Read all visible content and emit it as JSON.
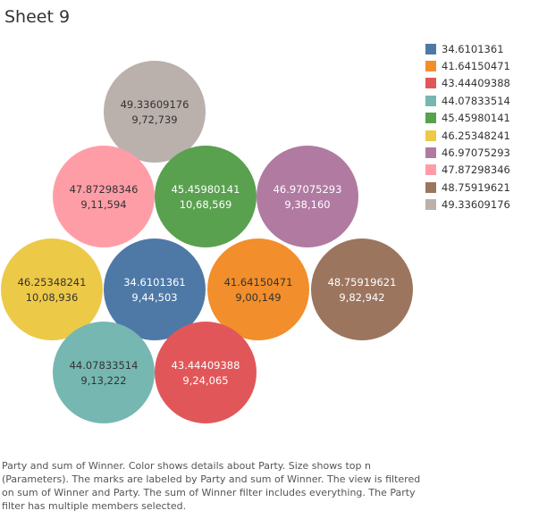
{
  "sheet_title": "Sheet 9",
  "caption": "Party and sum of Winner.  Color shows details about Party.  Size shows top n (Parameters).  The marks are labeled by Party and sum of Winner. The view is filtered on sum of Winner and Party. The sum of Winner filter includes everything. The Party filter has multiple members selected.",
  "chart_data": {
    "type": "packed-bubble",
    "title": "Sheet 9",
    "color_by": "Party",
    "size_by": "top n (Parameters)",
    "bubbles": [
      {
        "party": "49.33609176",
        "winner": "9,72,739",
        "color": "#bab0ac",
        "text_color": "#333333"
      },
      {
        "party": "47.87298346",
        "winner": "9,11,594",
        "color": "#ff9da7",
        "text_color": "#333333"
      },
      {
        "party": "45.45980141",
        "winner": "10,68,569",
        "color": "#59a14f",
        "text_color": "#ffffff"
      },
      {
        "party": "46.97075293",
        "winner": "9,38,160",
        "color": "#b07aa1",
        "text_color": "#ffffff"
      },
      {
        "party": "46.25348241",
        "winner": "10,08,936",
        "color": "#edc948",
        "text_color": "#333333"
      },
      {
        "party": "34.6101361",
        "winner": "9,44,503",
        "color": "#4e79a7",
        "text_color": "#ffffff"
      },
      {
        "party": "41.64150471",
        "winner": "9,00,149",
        "color": "#f28e2b",
        "text_color": "#333333"
      },
      {
        "party": "48.75919621",
        "winner": "9,82,942",
        "color": "#9c755f",
        "text_color": "#ffffff"
      },
      {
        "party": "44.07833514",
        "winner": "9,13,222",
        "color": "#76b7b2",
        "text_color": "#333333"
      },
      {
        "party": "43.44409388",
        "winner": "9,24,065",
        "color": "#e15759",
        "text_color": "#ffffff"
      }
    ],
    "legend": [
      {
        "label": "34.6101361",
        "color": "#4e79a7"
      },
      {
        "label": "41.64150471",
        "color": "#f28e2b"
      },
      {
        "label": "43.44409388",
        "color": "#e15759"
      },
      {
        "label": "44.07833514",
        "color": "#76b7b2"
      },
      {
        "label": "45.45980141",
        "color": "#59a14f"
      },
      {
        "label": "46.25348241",
        "color": "#edc948"
      },
      {
        "label": "46.97075293",
        "color": "#b07aa1"
      },
      {
        "label": "47.87298346",
        "color": "#ff9da7"
      },
      {
        "label": "48.75919621",
        "color": "#9c755f"
      },
      {
        "label": "49.33609176",
        "color": "#bab0ac"
      }
    ],
    "legend_placement": "top-right"
  }
}
